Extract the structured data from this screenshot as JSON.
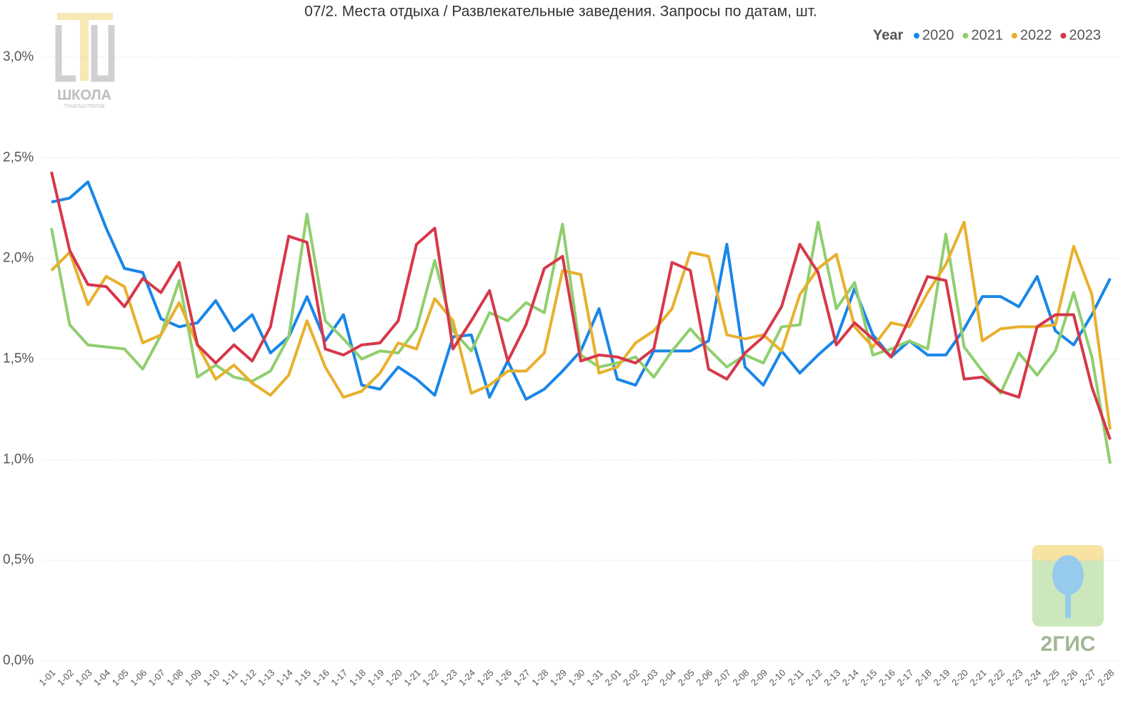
{
  "chart_data": {
    "type": "line",
    "title": "07/2. Места отдыха / Развлекательные заведения. Запросы по датам, шт.",
    "legend_title": "Year",
    "legend_position": "top-right",
    "grid": true,
    "categories": [
      "1-01",
      "1-02",
      "1-03",
      "1-04",
      "1-05",
      "1-06",
      "1-07",
      "1-08",
      "1-09",
      "1-10",
      "1-11",
      "1-12",
      "1-13",
      "1-14",
      "1-15",
      "1-16",
      "1-17",
      "1-18",
      "1-19",
      "1-20",
      "1-21",
      "1-22",
      "1-23",
      "1-24",
      "1-25",
      "1-26",
      "1-27",
      "1-28",
      "1-29",
      "1-30",
      "1-31",
      "2-01",
      "2-02",
      "2-03",
      "2-04",
      "2-05",
      "2-06",
      "2-07",
      "2-08",
      "2-09",
      "2-10",
      "2-11",
      "2-12",
      "2-13",
      "2-14",
      "2-15",
      "2-16",
      "2-17",
      "2-18",
      "2-19",
      "2-20",
      "2-21",
      "2-22",
      "2-23",
      "2-24",
      "2-25",
      "2-26",
      "2-27",
      "2-28"
    ],
    "ylim": [
      0,
      3
    ],
    "yticks": [
      {
        "value": 0,
        "label": "0,0%"
      },
      {
        "value": 0.5,
        "label": "0,5%"
      },
      {
        "value": 1,
        "label": "1,0%"
      },
      {
        "value": 1.5,
        "label": "1,5%"
      },
      {
        "value": 2,
        "label": "2,0%"
      },
      {
        "value": 2.5,
        "label": "2,5%"
      },
      {
        "value": 3,
        "label": "3,0%"
      }
    ],
    "series": [
      {
        "name": "2020",
        "color": "#1a86e8",
        "values": [
          2.28,
          2.3,
          2.38,
          2.15,
          1.95,
          1.93,
          1.7,
          1.66,
          1.68,
          1.79,
          1.64,
          1.72,
          1.53,
          1.61,
          1.81,
          1.59,
          1.72,
          1.37,
          1.35,
          1.46,
          1.4,
          1.32,
          1.61,
          1.62,
          1.31,
          1.49,
          1.3,
          1.35,
          1.44,
          1.54,
          1.75,
          1.4,
          1.37,
          1.54,
          1.54,
          1.54,
          1.59,
          2.07,
          1.46,
          1.37,
          1.54,
          1.43,
          1.52,
          1.6,
          1.85,
          1.62,
          1.51,
          1.59,
          1.52,
          1.52,
          1.65,
          1.81,
          1.81,
          1.76,
          1.91,
          1.64,
          1.57,
          1.72,
          1.9
        ]
      },
      {
        "name": "2021",
        "color": "#8fcf6e",
        "values": [
          2.15,
          1.67,
          1.57,
          1.56,
          1.55,
          1.45,
          1.62,
          1.89,
          1.41,
          1.47,
          1.41,
          1.39,
          1.44,
          1.61,
          2.22,
          1.69,
          1.6,
          1.5,
          1.54,
          1.53,
          1.65,
          1.99,
          1.64,
          1.54,
          1.73,
          1.69,
          1.78,
          1.73,
          2.17,
          1.52,
          1.46,
          1.48,
          1.51,
          1.41,
          1.54,
          1.65,
          1.55,
          1.46,
          1.52,
          1.48,
          1.66,
          1.67,
          2.18,
          1.75,
          1.88,
          1.52,
          1.55,
          1.59,
          1.55,
          2.12,
          1.56,
          1.44,
          1.33,
          1.53,
          1.42,
          1.54,
          1.83,
          1.51,
          0.98
        ]
      },
      {
        "name": "2022",
        "color": "#e8b02d",
        "values": [
          1.94,
          2.03,
          1.77,
          1.91,
          1.86,
          1.58,
          1.62,
          1.78,
          1.57,
          1.4,
          1.47,
          1.38,
          1.32,
          1.42,
          1.69,
          1.46,
          1.31,
          1.34,
          1.43,
          1.58,
          1.55,
          1.8,
          1.69,
          1.33,
          1.37,
          1.44,
          1.44,
          1.53,
          1.94,
          1.92,
          1.43,
          1.46,
          1.58,
          1.64,
          1.75,
          2.03,
          2.01,
          1.62,
          1.6,
          1.62,
          1.54,
          1.82,
          1.95,
          2.02,
          1.66,
          1.56,
          1.68,
          1.66,
          1.83,
          1.97,
          2.18,
          1.59,
          1.65,
          1.66,
          1.66,
          1.67,
          2.06,
          1.82,
          1.15
        ]
      },
      {
        "name": "2023",
        "color": "#d6384a",
        "values": [
          2.43,
          2.04,
          1.87,
          1.86,
          1.76,
          1.9,
          1.83,
          1.98,
          1.57,
          1.48,
          1.57,
          1.49,
          1.66,
          2.11,
          2.08,
          1.55,
          1.52,
          1.57,
          1.58,
          1.69,
          2.07,
          2.15,
          1.55,
          1.69,
          1.84,
          1.49,
          1.67,
          1.95,
          2.01,
          1.49,
          1.52,
          1.51,
          1.48,
          1.55,
          1.98,
          1.94,
          1.45,
          1.4,
          1.53,
          1.61,
          1.76,
          2.07,
          1.93,
          1.57,
          1.68,
          1.6,
          1.51,
          1.7,
          1.91,
          1.89,
          1.4,
          1.41,
          1.34,
          1.31,
          1.66,
          1.72,
          1.72,
          1.36,
          1.1
        ]
      }
    ]
  },
  "logos": {
    "school": "ШКОЛА",
    "school_sub": "ТРАБЛШУТЕРОВ",
    "brand": "2ГИС"
  }
}
